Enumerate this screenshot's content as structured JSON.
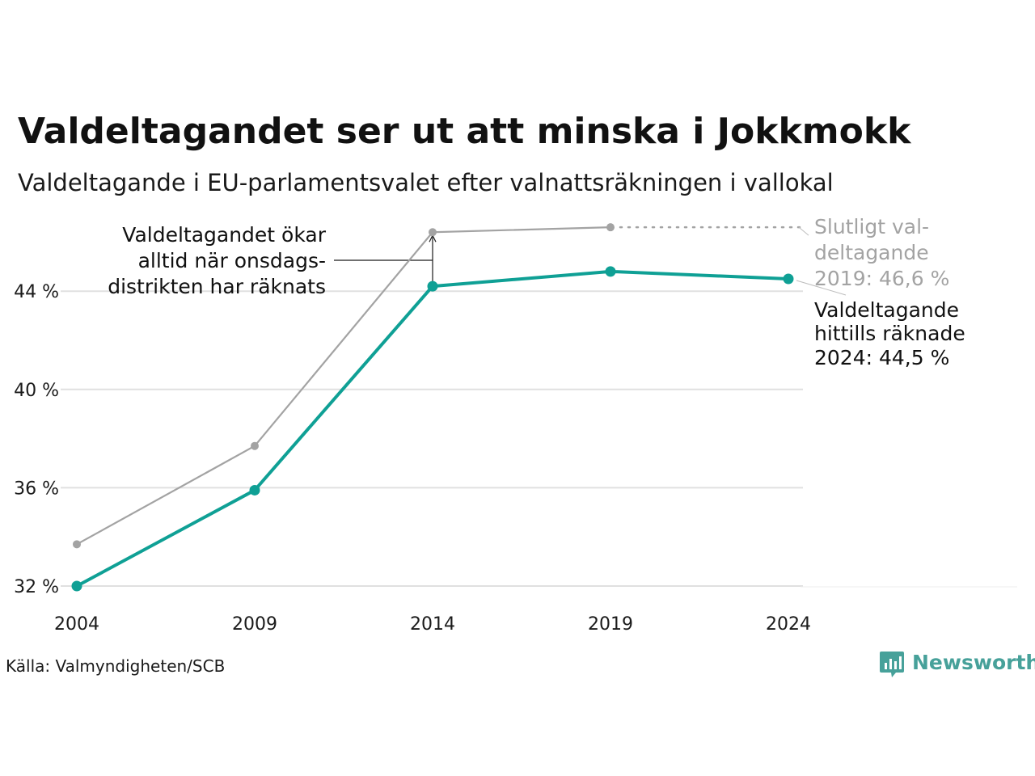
{
  "title": "Valdeltagandet ser ut att minska i Jokkmokk",
  "subtitle": "Valdeltagande i EU-parlamentsvalet efter valnattsräkningen i vallokal",
  "source": "Källa: Valmyndigheten/SCB",
  "brand": {
    "name": "Newsworthy",
    "icon": "bar-chart-speech-icon"
  },
  "colors": {
    "final": "#a3a3a3",
    "counted": "#0fa095",
    "grid": "#e0e0e0",
    "brand": "#47a19a"
  },
  "annotations": {
    "left": [
      "Valdeltagandet ökar",
      "alltid när onsdags-",
      "distrikten har räknats"
    ],
    "grey": [
      "Slutligt val-",
      "deltagande",
      "2019: 46,6 %"
    ],
    "teal": [
      "Valdeltagande",
      "hittills räknade",
      "2024: 44,5 %"
    ]
  },
  "chart_data": {
    "type": "line",
    "title": "Valdeltagandet ser ut att minska i Jokkmokk",
    "subtitle": "Valdeltagande i EU-parlamentsvalet efter valnattsräkningen i vallokal",
    "x": [
      2004,
      2009,
      2014,
      2019,
      2024
    ],
    "xlabel": "",
    "ylabel": "",
    "ylim": [
      32,
      46.6
    ],
    "yticks": [
      32,
      36,
      40,
      44
    ],
    "ytick_labels": [
      "32 %",
      "36 %",
      "40 %",
      "44 %"
    ],
    "xtick_labels": [
      "2004",
      "2009",
      "2014",
      "2019",
      "2024"
    ],
    "grid": true,
    "legend": "none",
    "series": [
      {
        "values": [
          33.7,
          37.7,
          46.4,
          46.6,
          null
        ]
      },
      {
        "values": [
          32.0,
          35.9,
          44.2,
          44.8,
          44.5
        ]
      }
    ]
  }
}
